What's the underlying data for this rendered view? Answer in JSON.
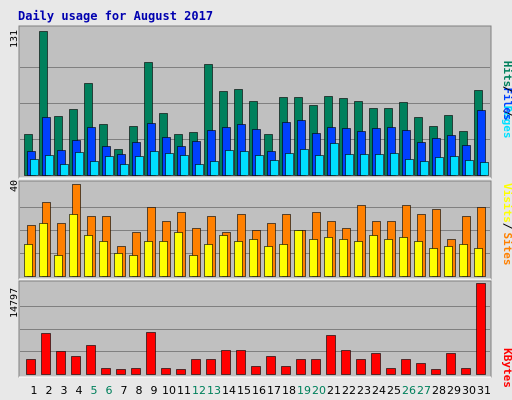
{
  "colors": {
    "background": "#e8e8e8",
    "panel": "#c0c0c0",
    "title": "#0000b0",
    "hits": "#00805c",
    "files": "#0040ff",
    "pages": "#00e0ff",
    "visits": "#ffff00",
    "sites": "#ff8000",
    "kbytes": "#ff0000",
    "weekend": "#00805c",
    "weekday": "#000000"
  },
  "chart_data": [
    {
      "type": "bar",
      "title": "Daily usage for August 2017",
      "ylabel_scale": "131",
      "ylim": [
        0,
        131
      ],
      "grid": true,
      "legend_placement": "right",
      "legend": [
        {
          "text": "Pages",
          "color_key": "pages"
        },
        {
          "text": "Files",
          "color_key": "files"
        },
        {
          "text": "Hits",
          "color_key": "hits"
        }
      ],
      "categories": [
        "1",
        "2",
        "3",
        "4",
        "5",
        "6",
        "7",
        "8",
        "9",
        "10",
        "11",
        "12",
        "13",
        "14",
        "15",
        "16",
        "17",
        "18",
        "19",
        "20",
        "21",
        "22",
        "23",
        "24",
        "25",
        "26",
        "27",
        "28",
        "29",
        "30",
        "31"
      ],
      "weekend_days": [
        "5",
        "6",
        "12",
        "13",
        "19",
        "20",
        "26",
        "27"
      ],
      "series": [
        {
          "name": "Hits",
          "color_key": "hits",
          "values": [
            37,
            131,
            54,
            60,
            84,
            46,
            24,
            45,
            103,
            56,
            37,
            39,
            101,
            76,
            78,
            67,
            37,
            71,
            71,
            64,
            72,
            70,
            67,
            61,
            61,
            66,
            53,
            45,
            55,
            40,
            77
          ]
        },
        {
          "name": "Files",
          "color_key": "files",
          "values": [
            22,
            53,
            23,
            32,
            44,
            26,
            19,
            30,
            47,
            35,
            26,
            31,
            41,
            44,
            46,
            42,
            22,
            48,
            50,
            38,
            44,
            43,
            40,
            43,
            44,
            41,
            30,
            34,
            36,
            27,
            59
          ]
        },
        {
          "name": "Pages",
          "color_key": "pages",
          "values": [
            15,
            18,
            10,
            21,
            13,
            17,
            10,
            17,
            22,
            20,
            18,
            10,
            13,
            23,
            22,
            18,
            14,
            20,
            24,
            18,
            29,
            19,
            19,
            19,
            20,
            15,
            13,
            16,
            17,
            14,
            12
          ]
        }
      ]
    },
    {
      "type": "bar",
      "ylabel_scale": "40",
      "ylim": [
        0,
        40
      ],
      "grid": true,
      "legend_placement": "right",
      "legend": [
        {
          "text": "Sites",
          "color_key": "sites"
        },
        {
          "text": "Visits",
          "color_key": "visits"
        }
      ],
      "series": [
        {
          "name": "Sites",
          "color_key": "sites",
          "values": [
            22,
            32,
            23,
            40,
            26,
            26,
            13,
            19,
            30,
            24,
            28,
            21,
            26,
            19,
            27,
            20,
            23,
            27,
            20,
            28,
            24,
            21,
            31,
            24,
            24,
            31,
            27,
            29,
            16,
            26,
            30
          ]
        },
        {
          "name": "Visits",
          "color_key": "visits",
          "values": [
            14,
            23,
            9,
            27,
            18,
            15,
            10,
            9,
            15,
            15,
            19,
            9,
            14,
            18,
            15,
            16,
            13,
            14,
            20,
            16,
            17,
            16,
            15,
            18,
            16,
            17,
            15,
            12,
            13,
            14,
            12
          ]
        }
      ]
    },
    {
      "type": "bar",
      "ylabel_scale": "14797",
      "ylim": [
        0,
        14797
      ],
      "grid": true,
      "legend_placement": "right",
      "legend": [
        {
          "text": "KBytes",
          "color_key": "kbytes"
        }
      ],
      "series": [
        {
          "name": "KBytes",
          "color_key": "kbytes",
          "values": [
            2480,
            6630,
            3720,
            2860,
            4790,
            1040,
            810,
            1030,
            6880,
            980,
            810,
            2480,
            2480,
            3940,
            3940,
            1380,
            2920,
            1380,
            2480,
            2480,
            6280,
            3940,
            2480,
            3400,
            1040,
            2480,
            1780,
            860,
            3400,
            980,
            14797
          ]
        }
      ]
    }
  ]
}
